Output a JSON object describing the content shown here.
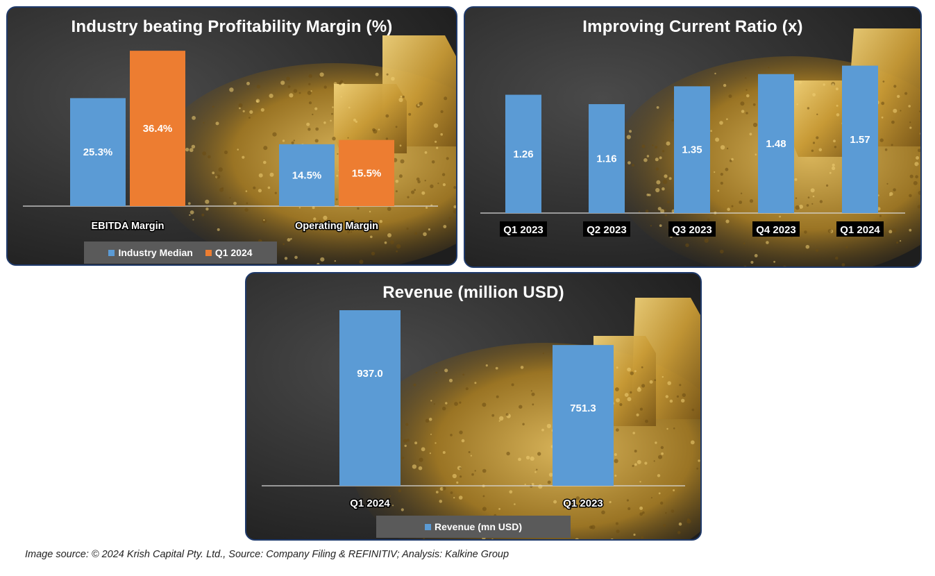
{
  "colors": {
    "industry": "#5b9bd5",
    "q1_2024": "#ed7d31",
    "revenue": "#5b9bd5",
    "axis": "#d9d9d9",
    "panel_border": "#1f3a6b"
  },
  "chart_data": [
    {
      "type": "bar",
      "title": "Industry beating Profitability Margin (%)",
      "categories": [
        "EBITDA Margin",
        "Operating Margin"
      ],
      "series": [
        {
          "name": "Industry Median",
          "values": [
            25.3,
            14.5
          ],
          "labels": [
            "25.3%",
            "14.5%"
          ]
        },
        {
          "name": "Q1 2024",
          "values": [
            36.4,
            15.5
          ],
          "labels": [
            "36.4%",
            "15.5%"
          ]
        }
      ],
      "ylim": [
        0,
        40
      ],
      "legend": "bottom"
    },
    {
      "type": "bar",
      "title": "Improving Current Ratio (x)",
      "categories": [
        "Q1 2023",
        "Q2 2023",
        "Q3 2023",
        "Q4 2023",
        "Q1 2024"
      ],
      "values": [
        1.26,
        1.16,
        1.35,
        1.48,
        1.57
      ],
      "labels": [
        "1.26",
        "1.16",
        "1.35",
        "1.48",
        "1.57"
      ],
      "ylim": [
        0,
        1.7
      ]
    },
    {
      "type": "bar",
      "title": "Revenue (million USD)",
      "categories": [
        "Q1 2024",
        "Q1 2023"
      ],
      "series": [
        {
          "name": "Revenue (mn USD)",
          "values": [
            937.0,
            751.3
          ],
          "labels": [
            "937.0",
            "751.3"
          ]
        }
      ],
      "ylim": [
        0,
        1000
      ],
      "legend": "bottom"
    }
  ],
  "footer": {
    "source": "Image source: © 2024 Krish Capital Pty. Ltd., Source: Company Filing & REFINITIV; Analysis: Kalkine Group"
  }
}
